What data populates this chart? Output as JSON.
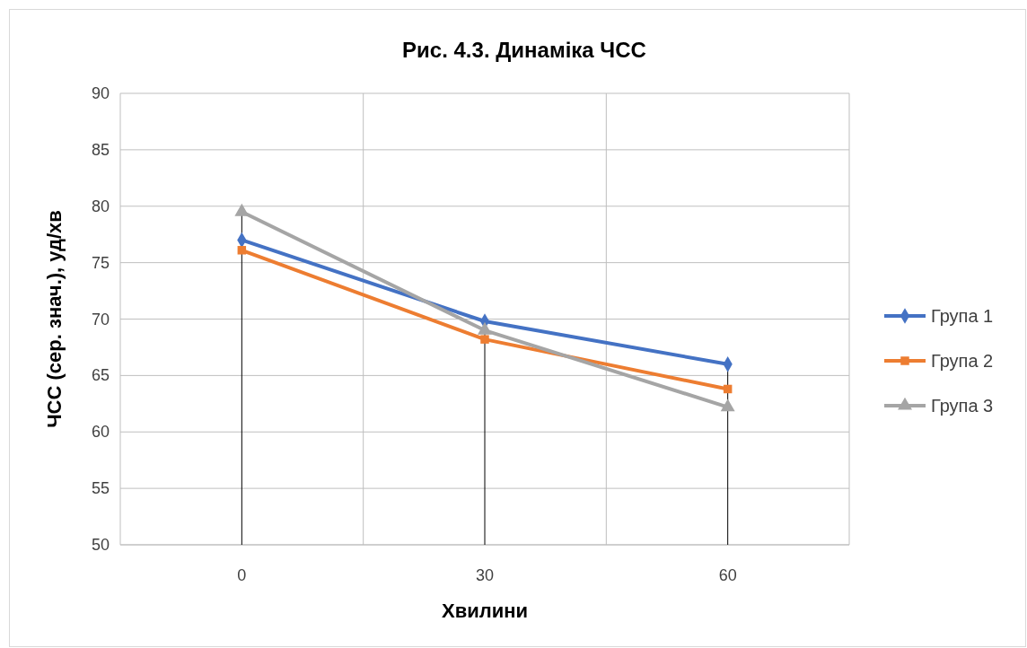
{
  "chart_data": {
    "type": "line",
    "title": "Рис. 4.3. Динаміка ЧСС",
    "xlabel": "Хвилини",
    "ylabel": "ЧСС (сер. знач.), уд/хв",
    "categories": [
      "0",
      "30",
      "60"
    ],
    "series": [
      {
        "name": "Група 1",
        "color": "#4472c4",
        "marker": "diamond",
        "values": [
          77.0,
          69.8,
          66.0
        ]
      },
      {
        "name": "Група 2",
        "color": "#ed7d31",
        "marker": "square",
        "values": [
          76.1,
          68.2,
          63.8
        ]
      },
      {
        "name": "Група 3",
        "color": "#a5a5a5",
        "marker": "triangle",
        "values": [
          79.5,
          69.0,
          62.2
        ]
      }
    ],
    "ylim": [
      50,
      90
    ],
    "yticks": [
      50,
      55,
      60,
      65,
      70,
      75,
      80,
      85,
      90
    ],
    "grid": true,
    "legend": "right",
    "ref_lines": [
      {
        "axis": "x",
        "value": "0",
        "color": "#000000"
      },
      {
        "axis": "x",
        "value": "30",
        "color": "#000000"
      },
      {
        "axis": "x",
        "value": "60",
        "color": "#000000"
      }
    ]
  }
}
